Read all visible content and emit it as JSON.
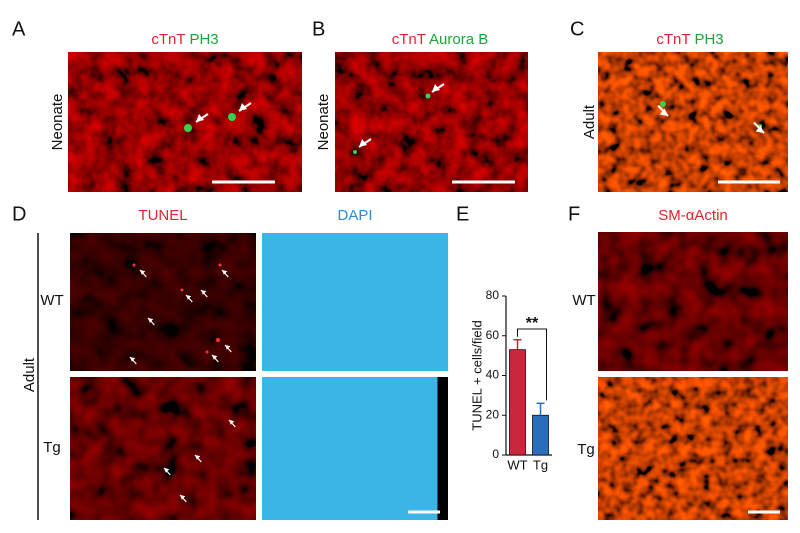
{
  "panels": {
    "A": {
      "label": "A",
      "stains": [
        "cTnT",
        "PH3"
      ],
      "side": "Neonate"
    },
    "B": {
      "label": "B",
      "stains": [
        "cTnT",
        "Aurora B"
      ],
      "side": "Neonate"
    },
    "C": {
      "label": "C",
      "stains": [
        "cTnT",
        "PH3"
      ],
      "side": "Adult"
    },
    "D": {
      "label": "D",
      "stains": [
        "TUNEL",
        "DAPI"
      ],
      "rows": [
        "WT",
        "Tg"
      ],
      "side": "Adult"
    },
    "E": {
      "label": "E"
    },
    "F": {
      "label": "F",
      "stains": [
        "SM-αActin"
      ],
      "rows": [
        "WT",
        "Tg"
      ]
    }
  },
  "chart_data": {
    "type": "bar",
    "ylabel": "TUNEL + cells/field",
    "categories": [
      "WT",
      "Tg"
    ],
    "values": [
      53,
      20
    ],
    "errors": [
      5,
      6
    ],
    "colors": [
      "#c8283c",
      "#2a6db8"
    ],
    "ylim": [
      0,
      80
    ],
    "yticks": [
      0,
      20,
      40,
      60,
      80
    ],
    "annotation": "**"
  }
}
